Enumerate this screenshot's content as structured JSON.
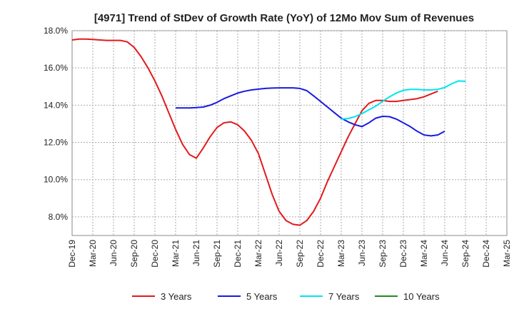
{
  "chart_data": {
    "type": "line",
    "title": "[4971]  Trend of StDev of Growth Rate (YoY) of 12Mo Mov Sum of Revenues",
    "xlabel": "",
    "ylabel": "",
    "ylim": [
      7.0,
      18.0
    ],
    "y_ticks": [
      8.0,
      10.0,
      12.0,
      14.0,
      16.0,
      18.0
    ],
    "y_tick_labels": [
      "8.0%",
      "10.0%",
      "12.0%",
      "14.0%",
      "16.0%",
      "18.0%"
    ],
    "x_tick_labels": [
      "Dec-19",
      "Mar-20",
      "Jun-20",
      "Sep-20",
      "Dec-20",
      "Mar-21",
      "Jun-21",
      "Sep-21",
      "Dec-21",
      "Mar-22",
      "Jun-22",
      "Sep-22",
      "Dec-22",
      "Mar-23",
      "Jun-23",
      "Sep-23",
      "Dec-23",
      "Mar-24",
      "Jun-24",
      "Sep-24",
      "Dec-24",
      "Mar-25"
    ],
    "grid": true,
    "legend_position": "bottom",
    "series": [
      {
        "name": "3 Years",
        "color": "#e31a1c",
        "start_index": 0,
        "values": [
          17.5,
          17.55,
          17.55,
          17.53,
          17.5,
          17.48,
          17.48,
          17.48,
          17.4,
          17.1,
          16.6,
          16.0,
          15.3,
          14.5,
          13.6,
          12.7,
          11.9,
          11.35,
          11.15,
          11.7,
          12.3,
          12.8,
          13.05,
          13.1,
          12.95,
          12.6,
          12.1,
          11.4,
          10.3,
          9.2,
          8.3,
          7.8,
          7.6,
          7.55,
          7.8,
          8.3,
          9.0,
          9.9,
          10.7,
          11.5,
          12.3,
          13.0,
          13.7,
          14.1,
          14.25,
          14.25,
          14.2,
          14.2,
          14.25,
          14.3,
          14.35,
          14.45,
          14.6,
          14.75
        ]
      },
      {
        "name": "5 Years",
        "color": "#1a1ae3",
        "start_index": 15,
        "values": [
          13.85,
          13.85,
          13.85,
          13.87,
          13.9,
          14.0,
          14.15,
          14.35,
          14.5,
          14.65,
          14.75,
          14.82,
          14.86,
          14.9,
          14.92,
          14.93,
          14.93,
          14.93,
          14.9,
          14.78,
          14.5,
          14.2,
          13.9,
          13.6,
          13.3,
          13.1,
          12.95,
          12.85,
          13.05,
          13.3,
          13.4,
          13.38,
          13.25,
          13.05,
          12.85,
          12.6,
          12.4,
          12.35,
          12.4,
          12.6
        ]
      },
      {
        "name": "7 Years",
        "color": "#00e5ee",
        "start_index": 39,
        "values": [
          13.25,
          13.28,
          13.38,
          13.55,
          13.75,
          13.95,
          14.2,
          14.45,
          14.65,
          14.8,
          14.85,
          14.85,
          14.82,
          14.82,
          14.85,
          14.95,
          15.15,
          15.3,
          15.28
        ]
      },
      {
        "name": "10 Years",
        "color": "#228b22",
        "start_index": 0,
        "values": []
      }
    ]
  }
}
